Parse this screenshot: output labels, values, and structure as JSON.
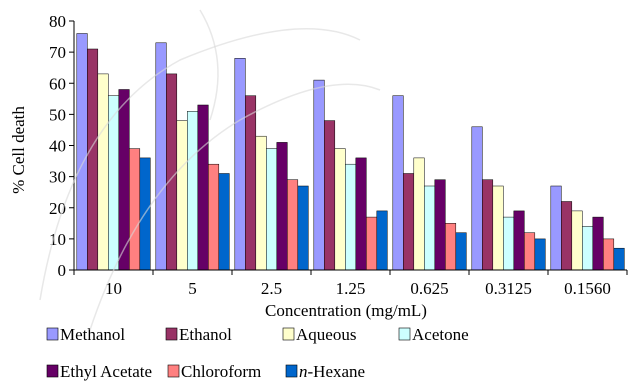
{
  "chart_data": {
    "type": "bar",
    "title": "",
    "xlabel": "Concentration (mg/mL)",
    "ylabel": "% Cell death",
    "ylim": [
      0,
      80
    ],
    "yticks": [
      0,
      10,
      20,
      30,
      40,
      50,
      60,
      70,
      80
    ],
    "grid": false,
    "legend_position": "bottom",
    "categories": [
      "10",
      "5",
      "2.5",
      "1.25",
      "0.625",
      "0.3125",
      "0.1560"
    ],
    "series": [
      {
        "name": "Methanol",
        "color": "#9999ff",
        "values": [
          76,
          73,
          68,
          61,
          56,
          46,
          27
        ]
      },
      {
        "name": "Ethanol",
        "color": "#993366",
        "values": [
          71,
          63,
          56,
          48,
          31,
          29,
          22
        ]
      },
      {
        "name": "Aqueous",
        "color": "#ffffcc",
        "values": [
          63,
          48,
          43,
          39,
          36,
          27,
          19
        ]
      },
      {
        "name": "Acetone",
        "color": "#ccffff",
        "values": [
          56,
          51,
          39,
          34,
          27,
          17,
          14
        ]
      },
      {
        "name": "Ethyl Acetate",
        "color": "#660066",
        "values": [
          58,
          53,
          41,
          36,
          29,
          19,
          17
        ]
      },
      {
        "name": "Chloroform",
        "color": "#ff8080",
        "values": [
          39,
          34,
          29,
          17,
          15,
          12,
          10
        ]
      },
      {
        "name": "n-Hexane",
        "color": "#0066cc",
        "values": [
          36,
          31,
          27,
          19,
          12,
          10,
          7
        ]
      }
    ]
  }
}
